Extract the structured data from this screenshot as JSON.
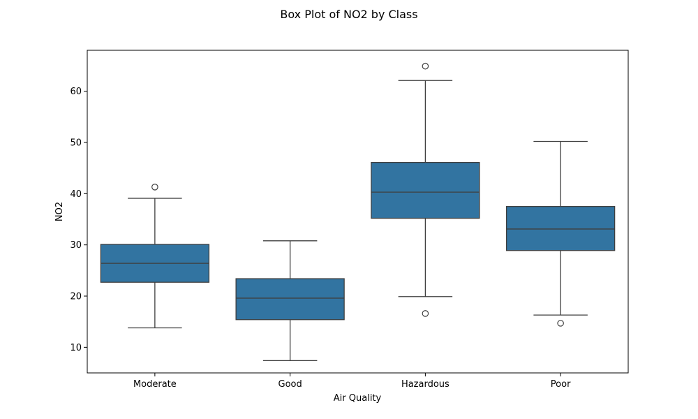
{
  "chart_data": {
    "type": "box",
    "title": "Box Plot of NO2 by Class",
    "xlabel": "Air Quality",
    "ylabel": "NO2",
    "ylim": [
      5,
      68
    ],
    "yticks": [
      10,
      20,
      30,
      40,
      50,
      60
    ],
    "grid": false,
    "color": "#3274a1",
    "categories": [
      "Moderate",
      "Good",
      "Hazardous",
      "Poor"
    ],
    "boxes": [
      {
        "category": "Moderate",
        "whisker_low": 13.8,
        "q1": 22.7,
        "median": 26.4,
        "q3": 30.1,
        "whisker_high": 39.1,
        "outliers": [
          41.3
        ]
      },
      {
        "category": "Good",
        "whisker_low": 7.4,
        "q1": 15.4,
        "median": 19.6,
        "q3": 23.4,
        "whisker_high": 30.8,
        "outliers": []
      },
      {
        "category": "Hazardous",
        "whisker_low": 19.9,
        "q1": 35.2,
        "median": 40.3,
        "q3": 46.1,
        "whisker_high": 62.1,
        "outliers": [
          16.6,
          64.9
        ]
      },
      {
        "category": "Poor",
        "whisker_low": 16.3,
        "q1": 28.9,
        "median": 33.1,
        "q3": 37.5,
        "whisker_high": 50.2,
        "outliers": [
          14.7
        ]
      }
    ]
  }
}
